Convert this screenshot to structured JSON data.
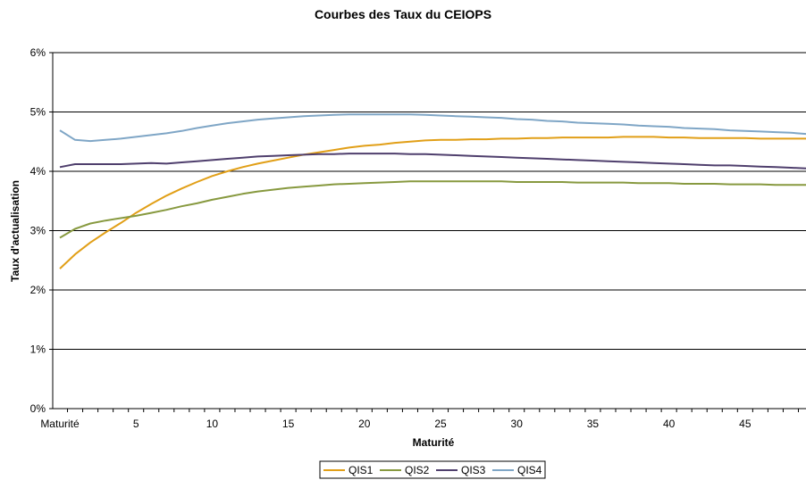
{
  "chart_data": {
    "type": "line",
    "title": "Courbes des Taux du CEIOPS",
    "xlabel": "Maturité",
    "ylabel": "Taux d'actualisation",
    "xlim": [
      0,
      49
    ],
    "ylim": [
      0,
      6
    ],
    "y_ticks": [
      0,
      1,
      2,
      3,
      4,
      5,
      6
    ],
    "y_tick_labels": [
      "0%",
      "1%",
      "2%",
      "3%",
      "4%",
      "5%",
      "6%"
    ],
    "x_ticks": [
      0,
      5,
      10,
      15,
      20,
      25,
      30,
      35,
      40,
      45
    ],
    "x_tick_labels": [
      "Maturité",
      "5",
      "10",
      "15",
      "20",
      "25",
      "30",
      "35",
      "40",
      "45"
    ],
    "grid": "horizontal",
    "legend": "bottom",
    "x": [
      0,
      1,
      2,
      3,
      4,
      5,
      6,
      7,
      8,
      9,
      10,
      11,
      12,
      13,
      14,
      15,
      16,
      17,
      18,
      19,
      20,
      21,
      22,
      23,
      24,
      25,
      26,
      27,
      28,
      29,
      30,
      31,
      32,
      33,
      34,
      35,
      36,
      37,
      38,
      39,
      40,
      41,
      42,
      43,
      44,
      45,
      46,
      47,
      48,
      49
    ],
    "series": [
      {
        "name": "QIS1",
        "color": "#e19f17",
        "values": [
          2.36,
          2.6,
          2.8,
          2.97,
          3.13,
          3.3,
          3.45,
          3.59,
          3.71,
          3.82,
          3.92,
          4.0,
          4.07,
          4.13,
          4.18,
          4.23,
          4.28,
          4.32,
          4.36,
          4.4,
          4.43,
          4.45,
          4.48,
          4.5,
          4.52,
          4.53,
          4.53,
          4.54,
          4.54,
          4.55,
          4.55,
          4.56,
          4.56,
          4.57,
          4.57,
          4.57,
          4.57,
          4.58,
          4.58,
          4.58,
          4.57,
          4.57,
          4.56,
          4.56,
          4.56,
          4.56,
          4.55,
          4.55,
          4.55,
          4.55
        ]
      },
      {
        "name": "QIS2",
        "color": "#87993f",
        "values": [
          2.88,
          3.03,
          3.12,
          3.17,
          3.21,
          3.25,
          3.3,
          3.35,
          3.41,
          3.46,
          3.52,
          3.57,
          3.62,
          3.66,
          3.69,
          3.72,
          3.74,
          3.76,
          3.78,
          3.79,
          3.8,
          3.81,
          3.82,
          3.83,
          3.83,
          3.83,
          3.83,
          3.83,
          3.83,
          3.83,
          3.82,
          3.82,
          3.82,
          3.82,
          3.81,
          3.81,
          3.81,
          3.81,
          3.8,
          3.8,
          3.8,
          3.79,
          3.79,
          3.79,
          3.78,
          3.78,
          3.78,
          3.77,
          3.77,
          3.77
        ]
      },
      {
        "name": "QIS3",
        "color": "#4f3f6d",
        "values": [
          4.07,
          4.12,
          4.12,
          4.12,
          4.12,
          4.13,
          4.14,
          4.13,
          4.15,
          4.17,
          4.19,
          4.21,
          4.23,
          4.25,
          4.26,
          4.27,
          4.28,
          4.29,
          4.29,
          4.3,
          4.3,
          4.3,
          4.3,
          4.29,
          4.29,
          4.28,
          4.27,
          4.26,
          4.25,
          4.24,
          4.23,
          4.22,
          4.21,
          4.2,
          4.19,
          4.18,
          4.17,
          4.16,
          4.15,
          4.14,
          4.13,
          4.12,
          4.11,
          4.1,
          4.1,
          4.09,
          4.08,
          4.07,
          4.06,
          4.05
        ]
      },
      {
        "name": "QIS4",
        "color": "#7fa6c6",
        "values": [
          4.69,
          4.53,
          4.51,
          4.53,
          4.55,
          4.58,
          4.61,
          4.64,
          4.68,
          4.73,
          4.77,
          4.81,
          4.84,
          4.87,
          4.89,
          4.91,
          4.93,
          4.94,
          4.95,
          4.96,
          4.96,
          4.96,
          4.96,
          4.96,
          4.95,
          4.94,
          4.93,
          4.92,
          4.91,
          4.9,
          4.88,
          4.87,
          4.85,
          4.84,
          4.82,
          4.81,
          4.8,
          4.79,
          4.77,
          4.76,
          4.75,
          4.73,
          4.72,
          4.71,
          4.69,
          4.68,
          4.67,
          4.66,
          4.65,
          4.63
        ]
      }
    ]
  }
}
